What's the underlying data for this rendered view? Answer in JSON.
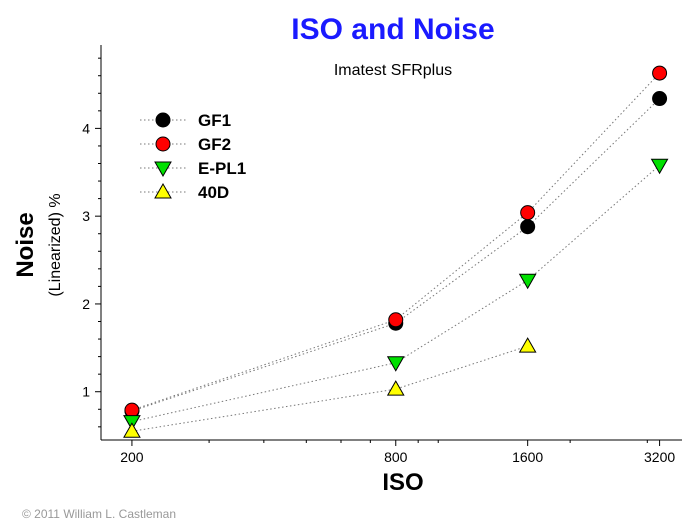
{
  "chart_data": {
    "type": "scatter",
    "title": "ISO and Noise",
    "subtitle": "Imatest SFRplus",
    "xlabel": "ISO",
    "ylabel": "Noise",
    "ylabel_unit": "(Linearized) %",
    "x_scale": "log",
    "x_ticks": [
      200,
      800,
      1600,
      3200
    ],
    "x_tick_labels": [
      "200",
      "800",
      "1600",
      "3200"
    ],
    "xlim": [
      170,
      3600
    ],
    "y_ticks": [
      1,
      2,
      3,
      4
    ],
    "y_tick_labels": [
      "1",
      "2",
      "3",
      "4"
    ],
    "ylim": [
      0.45,
      4.95
    ],
    "legend_position": "top-left",
    "grid": false,
    "series": [
      {
        "name": "GF1",
        "marker": "circle",
        "color": "#000000",
        "x": [
          200,
          800,
          1600,
          3200
        ],
        "y": [
          0.78,
          1.78,
          2.88,
          4.34
        ]
      },
      {
        "name": "GF2",
        "marker": "circle",
        "color": "#ff0000",
        "x": [
          200,
          800,
          1600,
          3200
        ],
        "y": [
          0.79,
          1.82,
          3.04,
          4.63
        ]
      },
      {
        "name": "E-PL1",
        "marker": "triangle-down",
        "color": "#00e000",
        "x": [
          200,
          800,
          1600,
          3200
        ],
        "y": [
          0.66,
          1.33,
          2.27,
          3.58
        ]
      },
      {
        "name": "40D",
        "marker": "triangle-up",
        "color": "#ffff00",
        "x": [
          200,
          800,
          1600
        ],
        "y": [
          0.55,
          1.03,
          1.52
        ]
      }
    ]
  },
  "copyright": "© 2011 William L. Castleman"
}
